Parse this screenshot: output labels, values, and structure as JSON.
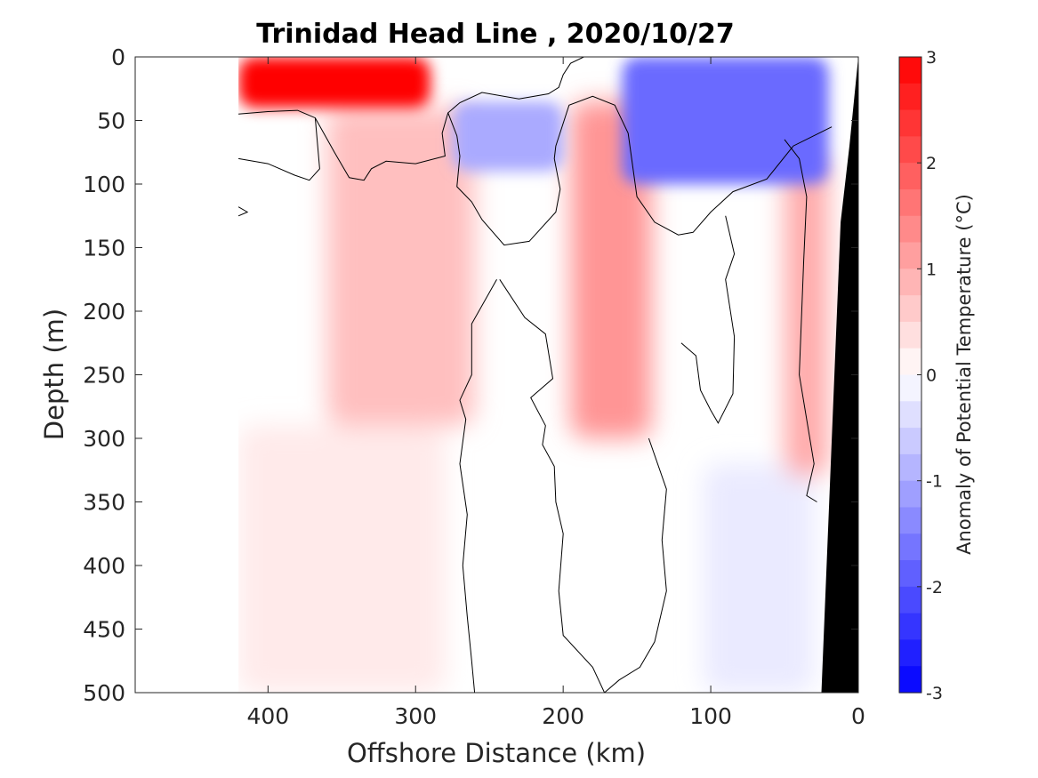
{
  "chart_data": {
    "type": "heatmap",
    "title": "Trinidad Head Line , 2020/10/27",
    "xlabel": "Offshore Distance (km)",
    "ylabel": "Depth (m)",
    "colorbar_label": "Anomaly of Potential Temperature (°C)",
    "x_direction": "reversed",
    "y_direction": "reversed",
    "xlim": [
      0,
      490
    ],
    "ylim": [
      0,
      500
    ],
    "x_ticks": [
      400,
      300,
      200,
      100,
      0
    ],
    "y_ticks": [
      0,
      50,
      100,
      150,
      200,
      250,
      300,
      350,
      400,
      450,
      500
    ],
    "clim": [
      -3,
      3
    ],
    "colorbar_ticks": [
      3,
      2,
      1,
      0,
      -1,
      -2,
      -3
    ],
    "contour_interval": 0.25,
    "zero_contour": true,
    "grid": false,
    "colors": {
      "warm_max": "#ff0000",
      "cold_max": "#0000ff",
      "neutral": "#ffffff",
      "seafloor": "#000000",
      "contour_line": "#000000"
    },
    "features": [
      {
        "label": "near-surface warm core",
        "x_range": [
          420,
          290
        ],
        "depth_range": [
          0,
          40
        ],
        "anomaly": 3.0
      },
      {
        "label": "subsurface warm tongue",
        "x_range": [
          360,
          260
        ],
        "depth_range": [
          40,
          290
        ],
        "anomaly": 0.75
      },
      {
        "label": "deep warm band",
        "x_range": [
          420,
          280
        ],
        "depth_range": [
          290,
          500
        ],
        "anomaly": 0.25
      },
      {
        "label": "cool lens",
        "x_range": [
          275,
          200
        ],
        "depth_range": [
          35,
          90
        ],
        "anomaly": -1.0
      },
      {
        "label": "warm eddy",
        "x_range": [
          195,
          140
        ],
        "depth_range": [
          35,
          300
        ],
        "anomaly": 1.25
      },
      {
        "label": "near-surface cold core",
        "x_range": [
          160,
          20
        ],
        "depth_range": [
          0,
          100
        ],
        "anomaly": -1.75
      },
      {
        "label": "deep cool patch",
        "x_range": [
          105,
          30
        ],
        "depth_range": [
          320,
          500
        ],
        "anomaly": -0.25
      },
      {
        "label": "near-shore warm strip",
        "x_range": [
          50,
          20
        ],
        "depth_range": [
          80,
          330
        ],
        "anomaly": 1.0
      }
    ]
  }
}
